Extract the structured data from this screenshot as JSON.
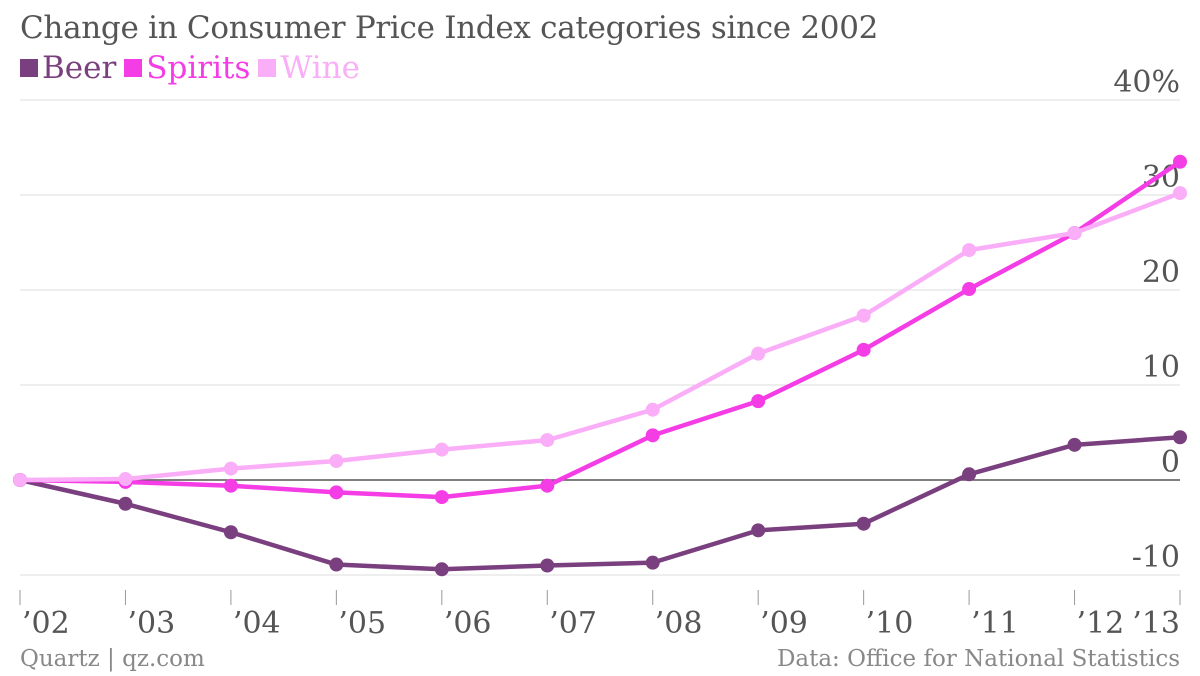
{
  "chart_data": {
    "type": "line",
    "title": "Change in Consumer Price Index categories since 2002",
    "xlabel": "",
    "ylabel": "",
    "categories": [
      "’02",
      "’03",
      "’04",
      "’05",
      "’06",
      "’07",
      "’08",
      "’09",
      "’10",
      "’11",
      "’12",
      "’13"
    ],
    "ylim": [
      -10,
      40
    ],
    "y_ticks": [
      {
        "value": 40,
        "label": "40%"
      },
      {
        "value": 30,
        "label": "30"
      },
      {
        "value": 20,
        "label": "20"
      },
      {
        "value": 10,
        "label": "10"
      },
      {
        "value": 0,
        "label": "0"
      },
      {
        "value": -10,
        "label": "-10"
      }
    ],
    "grid": true,
    "legend_position": "top-left",
    "series": [
      {
        "name": "Beer",
        "color": "#7a3f7e",
        "values": [
          0,
          -2.5,
          -5.5,
          -8.9,
          -9.4,
          -9.0,
          -8.7,
          -5.3,
          -4.6,
          0.6,
          3.7,
          4.5
        ]
      },
      {
        "name": "Spirits",
        "color": "#f53de6",
        "values": [
          0,
          -0.2,
          -0.6,
          -1.3,
          -1.8,
          -0.6,
          4.7,
          8.3,
          13.7,
          20.1,
          26.0,
          33.5
        ]
      },
      {
        "name": "Wine",
        "color": "#f9aef7",
        "values": [
          0,
          0.1,
          1.2,
          2.0,
          3.2,
          4.2,
          7.4,
          13.3,
          17.3,
          24.2,
          26.0,
          30.2
        ]
      }
    ]
  },
  "footer": {
    "source_left": "Quartz | qz.com",
    "source_right": "Data: Office for National Statistics"
  }
}
